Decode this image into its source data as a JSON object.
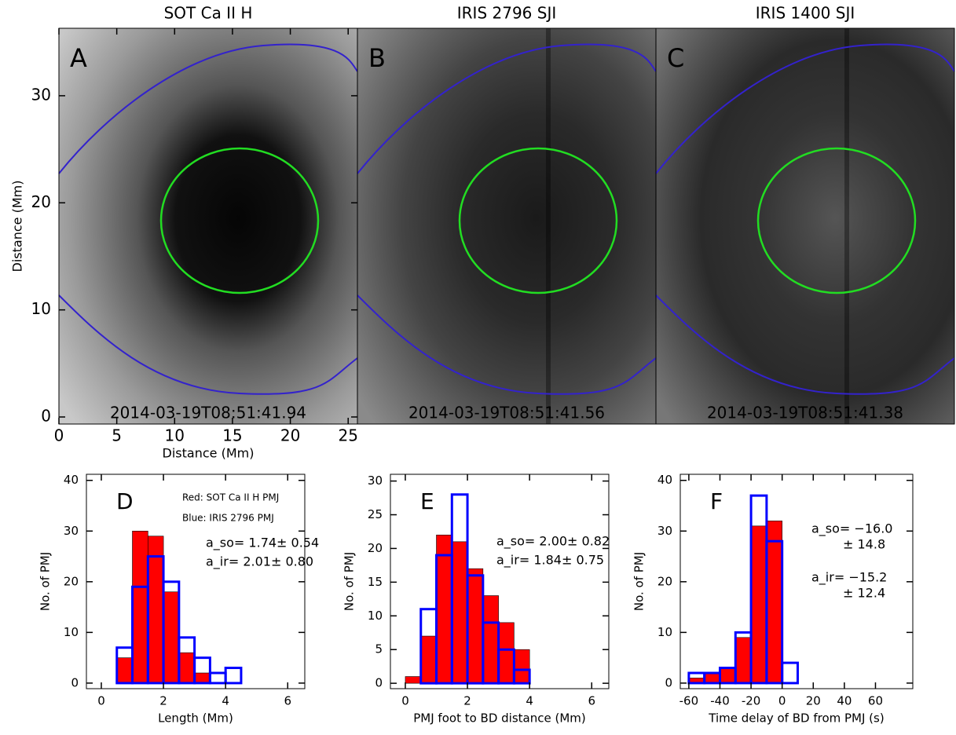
{
  "chart_data": [
    {
      "type": "image",
      "title": "SOT Ca II H",
      "panel_label": "A",
      "timestamp": "2014-03-19T08:51:41.94",
      "xlabel": "Distance (Mm)",
      "ylabel": "Distance (Mm)",
      "xlim": [
        0,
        25.8
      ],
      "ylim": [
        -0.66,
        36.3
      ],
      "xticks": [
        0,
        5,
        10,
        15,
        20,
        25
      ],
      "yticks": [
        0,
        10,
        20,
        30
      ]
    },
    {
      "type": "image",
      "title": "IRIS 2796 SJI",
      "panel_label": "B",
      "timestamp": "2014-03-19T08:51:41.56"
    },
    {
      "type": "image",
      "title": "IRIS 1400 SJI",
      "panel_label": "C",
      "timestamp": "2014-03-19T08:51:41.38"
    },
    {
      "type": "histogram",
      "panel_label": "D",
      "xlabel": "Length (Mm)",
      "ylabel": "No. of PMJ",
      "bins": [
        0,
        0.5,
        1,
        1.5,
        2,
        2.5,
        3,
        3.5,
        4,
        4.5,
        5,
        5.5,
        6,
        6.5
      ],
      "series": [
        {
          "name": "Red: SOT Ca II H PMJ",
          "color": "#ff0000",
          "style": "filled",
          "values": [
            0,
            5,
            30,
            29,
            18,
            6,
            2,
            0,
            0,
            0,
            0,
            0,
            0
          ]
        },
        {
          "name": "Blue: IRIS 2796 PMJ",
          "color": "#0000ff",
          "style": "outline",
          "values": [
            0,
            7,
            19,
            25,
            20,
            9,
            5,
            2,
            3,
            0,
            0,
            0,
            0
          ]
        }
      ],
      "xlim": [
        -0.48,
        6.55
      ],
      "ylim": [
        -1.1,
        41.2
      ],
      "xticks": [
        0,
        2,
        4,
        6
      ],
      "yticks": [
        0,
        10,
        20,
        30,
        40
      ],
      "annotations": [
        {
          "text": "a_so= 1.74± 0.54",
          "color": "#ff0000"
        },
        {
          "text": "a_ir= 2.01± 0.80",
          "color": "#0000ff"
        }
      ]
    },
    {
      "type": "histogram",
      "panel_label": "E",
      "xlabel": "PMJ foot to BD distance (Mm)",
      "ylabel": "No. of PMJ",
      "bins": [
        0,
        0.5,
        1,
        1.5,
        2,
        2.5,
        3,
        3.5,
        4,
        4.5,
        5,
        5.5,
        6,
        6.5
      ],
      "series": [
        {
          "color": "#ff0000",
          "style": "filled",
          "values": [
            1,
            7,
            22,
            21,
            17,
            13,
            9,
            5,
            0,
            0,
            0,
            0,
            0
          ]
        },
        {
          "color": "#0000ff",
          "style": "outline",
          "values": [
            0,
            11,
            19,
            28,
            16,
            9,
            5,
            2,
            0,
            0,
            0,
            0,
            0
          ]
        }
      ],
      "xlim": [
        -0.48,
        6.55
      ],
      "ylim": [
        -0.8,
        31
      ],
      "xticks": [
        0,
        2,
        4,
        6
      ],
      "yticks": [
        0,
        5,
        10,
        15,
        20,
        25,
        30
      ],
      "annotations": [
        {
          "text": "a_so= 2.00± 0.82",
          "color": "#ff0000"
        },
        {
          "text": "a_ir= 1.84± 0.75",
          "color": "#0000ff"
        }
      ]
    },
    {
      "type": "histogram",
      "panel_label": "F",
      "xlabel": "Time delay of BD from PMJ (s)",
      "ylabel": "No. of PMJ",
      "bins": [
        -60,
        -50,
        -40,
        -30,
        -20,
        -10,
        0,
        10,
        20,
        30,
        40,
        50,
        60,
        70,
        80
      ],
      "series": [
        {
          "color": "#ff0000",
          "style": "filled",
          "values": [
            1,
            2,
            3,
            9,
            31,
            32,
            0,
            0,
            0,
            0,
            0,
            0,
            0,
            0
          ]
        },
        {
          "color": "#0000ff",
          "style": "outline",
          "values": [
            2,
            2,
            3,
            10,
            37,
            28,
            4,
            0,
            0,
            0,
            0,
            0,
            0,
            0
          ]
        }
      ],
      "xlim": [
        -65.5,
        84
      ],
      "ylim": [
        -1.1,
        41.2
      ],
      "xticks": [
        -60,
        -40,
        -20,
        0,
        20,
        40,
        60
      ],
      "yticks": [
        0,
        10,
        20,
        30,
        40
      ],
      "annotations": [
        {
          "text": "a_so= −16.0",
          "color": "#ff0000"
        },
        {
          "text": "± 14.8",
          "color": "#ff0000"
        },
        {
          "text": "a_ir= −15.2",
          "color": "#0000ff"
        },
        {
          "text": "± 12.4",
          "color": "#0000ff"
        }
      ]
    }
  ]
}
